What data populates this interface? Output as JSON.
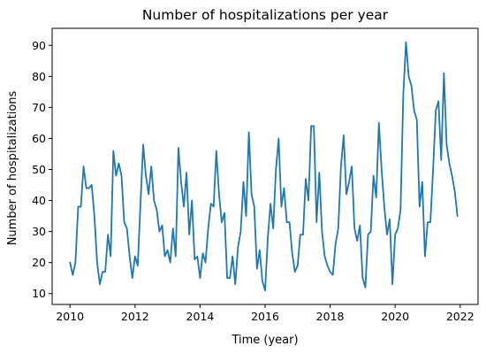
{
  "chart_data": {
    "type": "line",
    "title": "Number of hospitalizations per year",
    "xlabel": "Time (year)",
    "ylabel": "Number of hospitalizations",
    "xlim": [
      2009.45,
      2022.55
    ],
    "ylim": [
      6.5,
      95.5
    ],
    "xticks": [
      2010,
      2012,
      2014,
      2016,
      2018,
      2020,
      2022
    ],
    "yticks": [
      10,
      20,
      30,
      40,
      50,
      60,
      70,
      80,
      90
    ],
    "grid": false,
    "legend": "none",
    "series": [
      {
        "color": "#1f77b4",
        "x_start": 2010.0,
        "x_step_months": 1,
        "values": [
          20,
          16,
          20,
          38,
          38,
          51,
          44,
          44,
          45,
          35,
          20,
          13,
          17,
          17,
          29,
          22,
          56,
          48,
          52,
          48,
          33,
          31,
          22,
          15,
          22,
          19,
          39,
          58,
          48,
          42,
          51,
          40,
          37,
          30,
          32,
          22,
          24,
          20,
          31,
          22,
          57,
          46,
          38,
          49,
          29,
          40,
          21,
          22,
          15,
          23,
          20,
          31,
          39,
          38,
          56,
          42,
          33,
          36,
          15,
          15,
          22,
          13,
          25,
          30,
          46,
          35,
          62,
          42,
          38,
          18,
          24,
          14,
          11,
          28,
          39,
          31,
          50,
          60,
          38,
          44,
          33,
          33,
          23,
          17,
          19,
          29,
          29,
          47,
          40,
          64,
          64,
          33,
          49,
          30,
          22,
          19,
          17,
          16,
          26,
          31,
          51,
          61,
          42,
          46,
          51,
          31,
          27,
          32,
          15,
          12,
          29,
          30,
          48,
          41,
          65,
          50,
          38,
          29,
          34,
          13,
          29,
          31,
          37,
          74,
          91,
          80,
          77,
          69,
          66,
          38,
          46,
          22,
          33,
          33,
          50,
          69,
          72,
          53,
          81,
          58,
          52,
          48,
          43,
          35
        ]
      }
    ]
  }
}
